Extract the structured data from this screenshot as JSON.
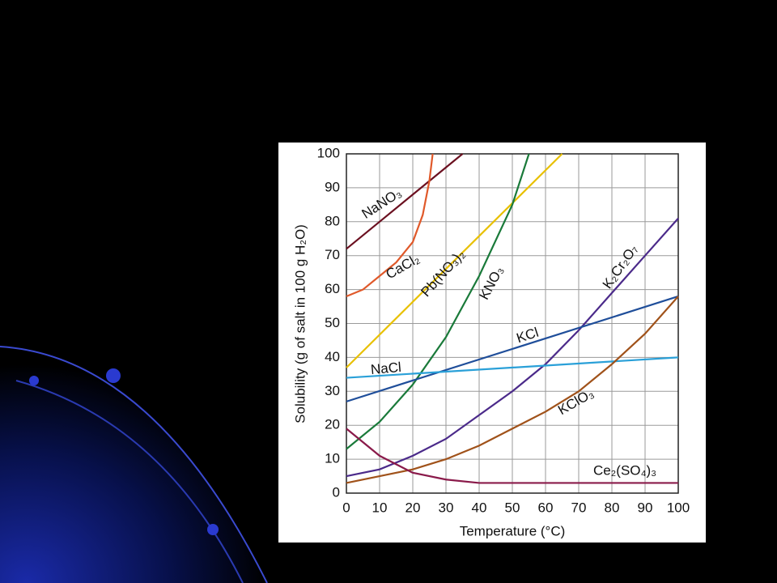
{
  "chart_data": {
    "type": "line",
    "x_label": "Temperature (°C)",
    "y_label": "Solubility (g of salt in 100 g H₂O)",
    "xlim": [
      0,
      100
    ],
    "ylim": [
      0,
      100
    ],
    "xticks": [
      0,
      10,
      20,
      30,
      40,
      50,
      60,
      70,
      80,
      90,
      100
    ],
    "yticks": [
      0,
      10,
      20,
      30,
      40,
      50,
      60,
      70,
      80,
      90,
      100
    ],
    "grid": true,
    "series": [
      {
        "name": "NaNO₃",
        "color": "#6b1020",
        "x": [
          0,
          10,
          20,
          30,
          35
        ],
        "values": [
          72,
          80,
          88,
          96,
          100
        ]
      },
      {
        "name": "CaCl₂",
        "color": "#e0592a",
        "x": [
          0,
          5,
          10,
          15,
          20,
          23,
          25,
          26
        ],
        "values": [
          58,
          60,
          64,
          68,
          74,
          82,
          92,
          100
        ]
      },
      {
        "name": "Pb(NO₃)₂",
        "color": "#e8c000",
        "x": [
          0,
          65
        ],
        "values": [
          37,
          100
        ]
      },
      {
        "name": "KNO₃",
        "color": "#1a7a3a",
        "x": [
          0,
          10,
          20,
          30,
          40,
          50,
          55
        ],
        "values": [
          13,
          21,
          32,
          46,
          64,
          85,
          100
        ]
      },
      {
        "name": "K₂Cr₂O₇",
        "color": "#4b2a8a",
        "x": [
          0,
          10,
          20,
          30,
          40,
          50,
          60,
          70,
          80,
          90,
          100
        ],
        "values": [
          5,
          7,
          11,
          16,
          23,
          30,
          38,
          48,
          59,
          70,
          81
        ]
      },
      {
        "name": "KCl",
        "color": "#1f4e9a",
        "x": [
          0,
          100
        ],
        "values": [
          27,
          58
        ]
      },
      {
        "name": "NaCl",
        "color": "#2aa0d8",
        "x": [
          0,
          100
        ],
        "values": [
          34,
          40
        ]
      },
      {
        "name": "KClO₃",
        "color": "#a0521a",
        "x": [
          0,
          10,
          20,
          30,
          40,
          50,
          60,
          70,
          80,
          90,
          100
        ],
        "values": [
          3,
          5,
          7,
          10,
          14,
          19,
          24,
          30,
          38,
          47,
          58
        ]
      },
      {
        "name": "Ce₂(SO₄)₃",
        "color": "#8a1a4a",
        "x": [
          0,
          10,
          20,
          30,
          40,
          100
        ],
        "values": [
          19,
          11,
          6,
          4,
          3,
          3
        ]
      }
    ]
  }
}
